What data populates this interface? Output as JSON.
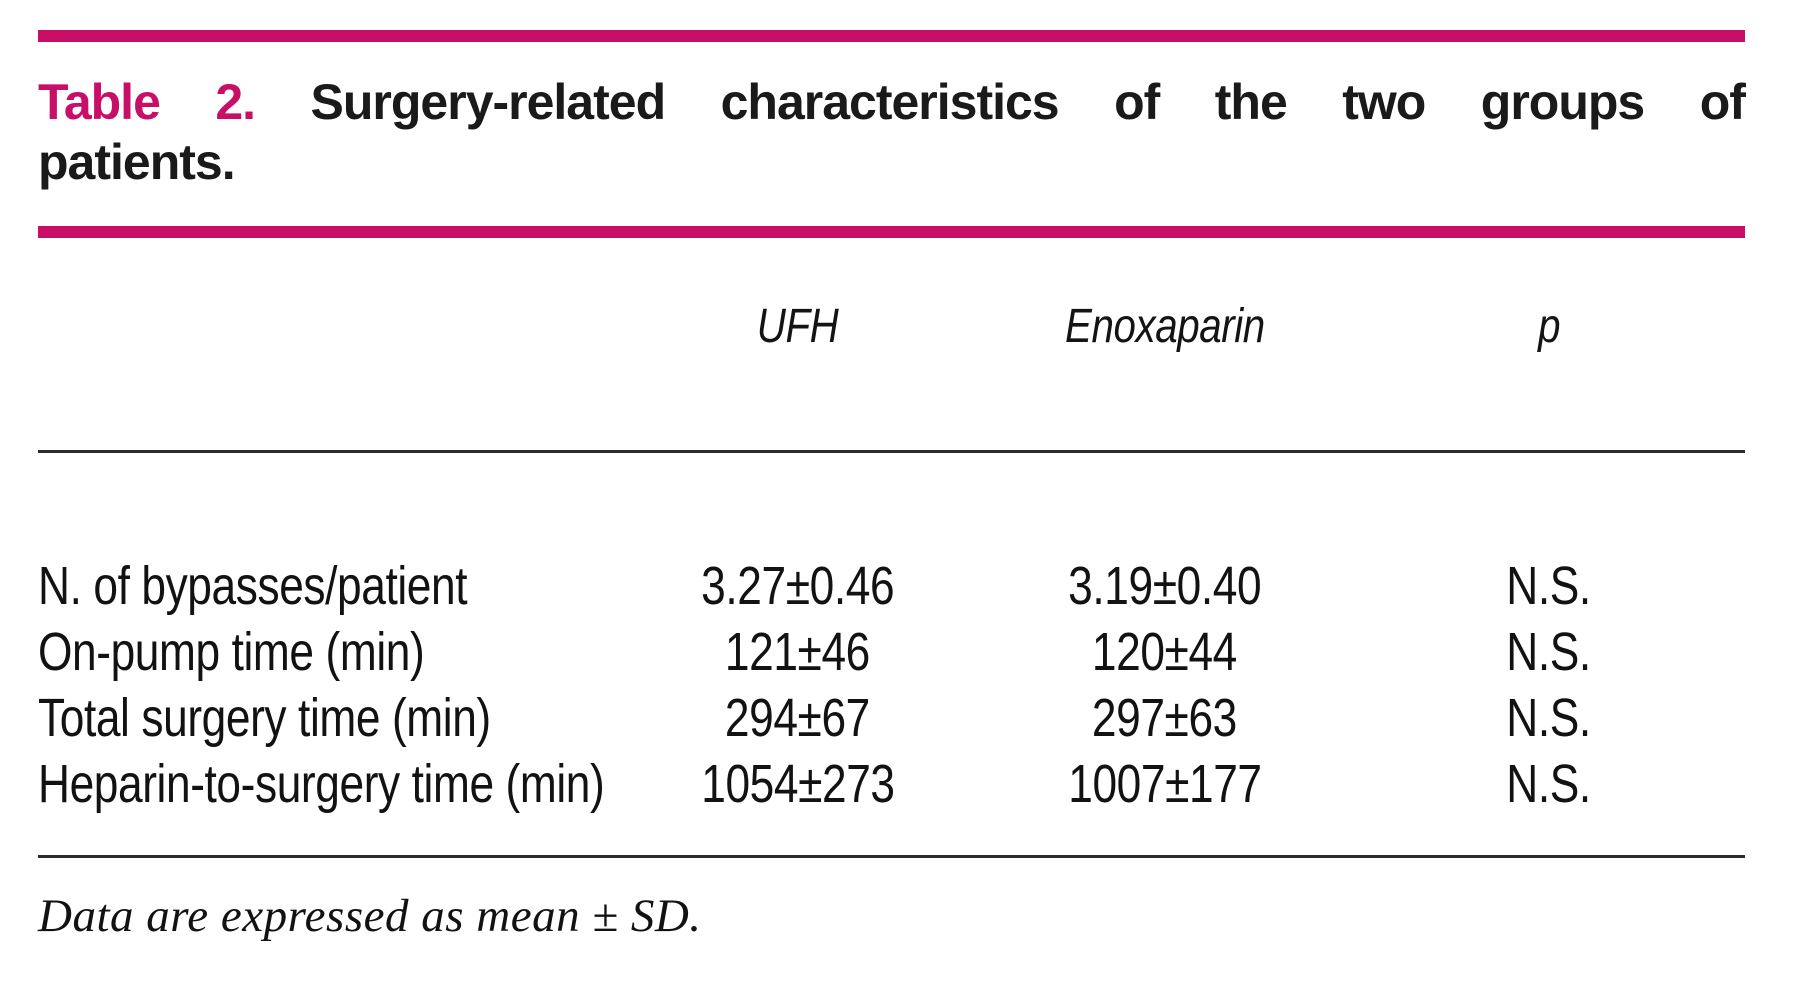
{
  "colors": {
    "accent": "#c80e66",
    "text": "#121212",
    "rule_thin": "#2b2b2b"
  },
  "title": {
    "line1_words": [
      "Table",
      "2.",
      "Surgery-related",
      "characteristics",
      "of",
      "the",
      "two",
      "groups",
      "of"
    ],
    "line2": "patients."
  },
  "table": {
    "header": {
      "ufh": "UFH",
      "enoxaparin": "Enoxaparin",
      "p": "p"
    },
    "rows": [
      {
        "label": "N. of bypasses/patient",
        "ufh": "3.27±0.46",
        "enoxaparin": "3.19±0.40",
        "p": "N.S."
      },
      {
        "label": "On-pump time (min)",
        "ufh": "121±46",
        "enoxaparin": "120±44",
        "p": "N.S."
      },
      {
        "label": "Total surgery time (min)",
        "ufh": "294±67",
        "enoxaparin": "297±63",
        "p": "N.S."
      },
      {
        "label": "Heparin-to-surgery time (min)",
        "ufh": "1054±273",
        "enoxaparin": "1007±177",
        "p": "N.S."
      }
    ]
  },
  "footnote": "Data are expressed as mean ± SD."
}
